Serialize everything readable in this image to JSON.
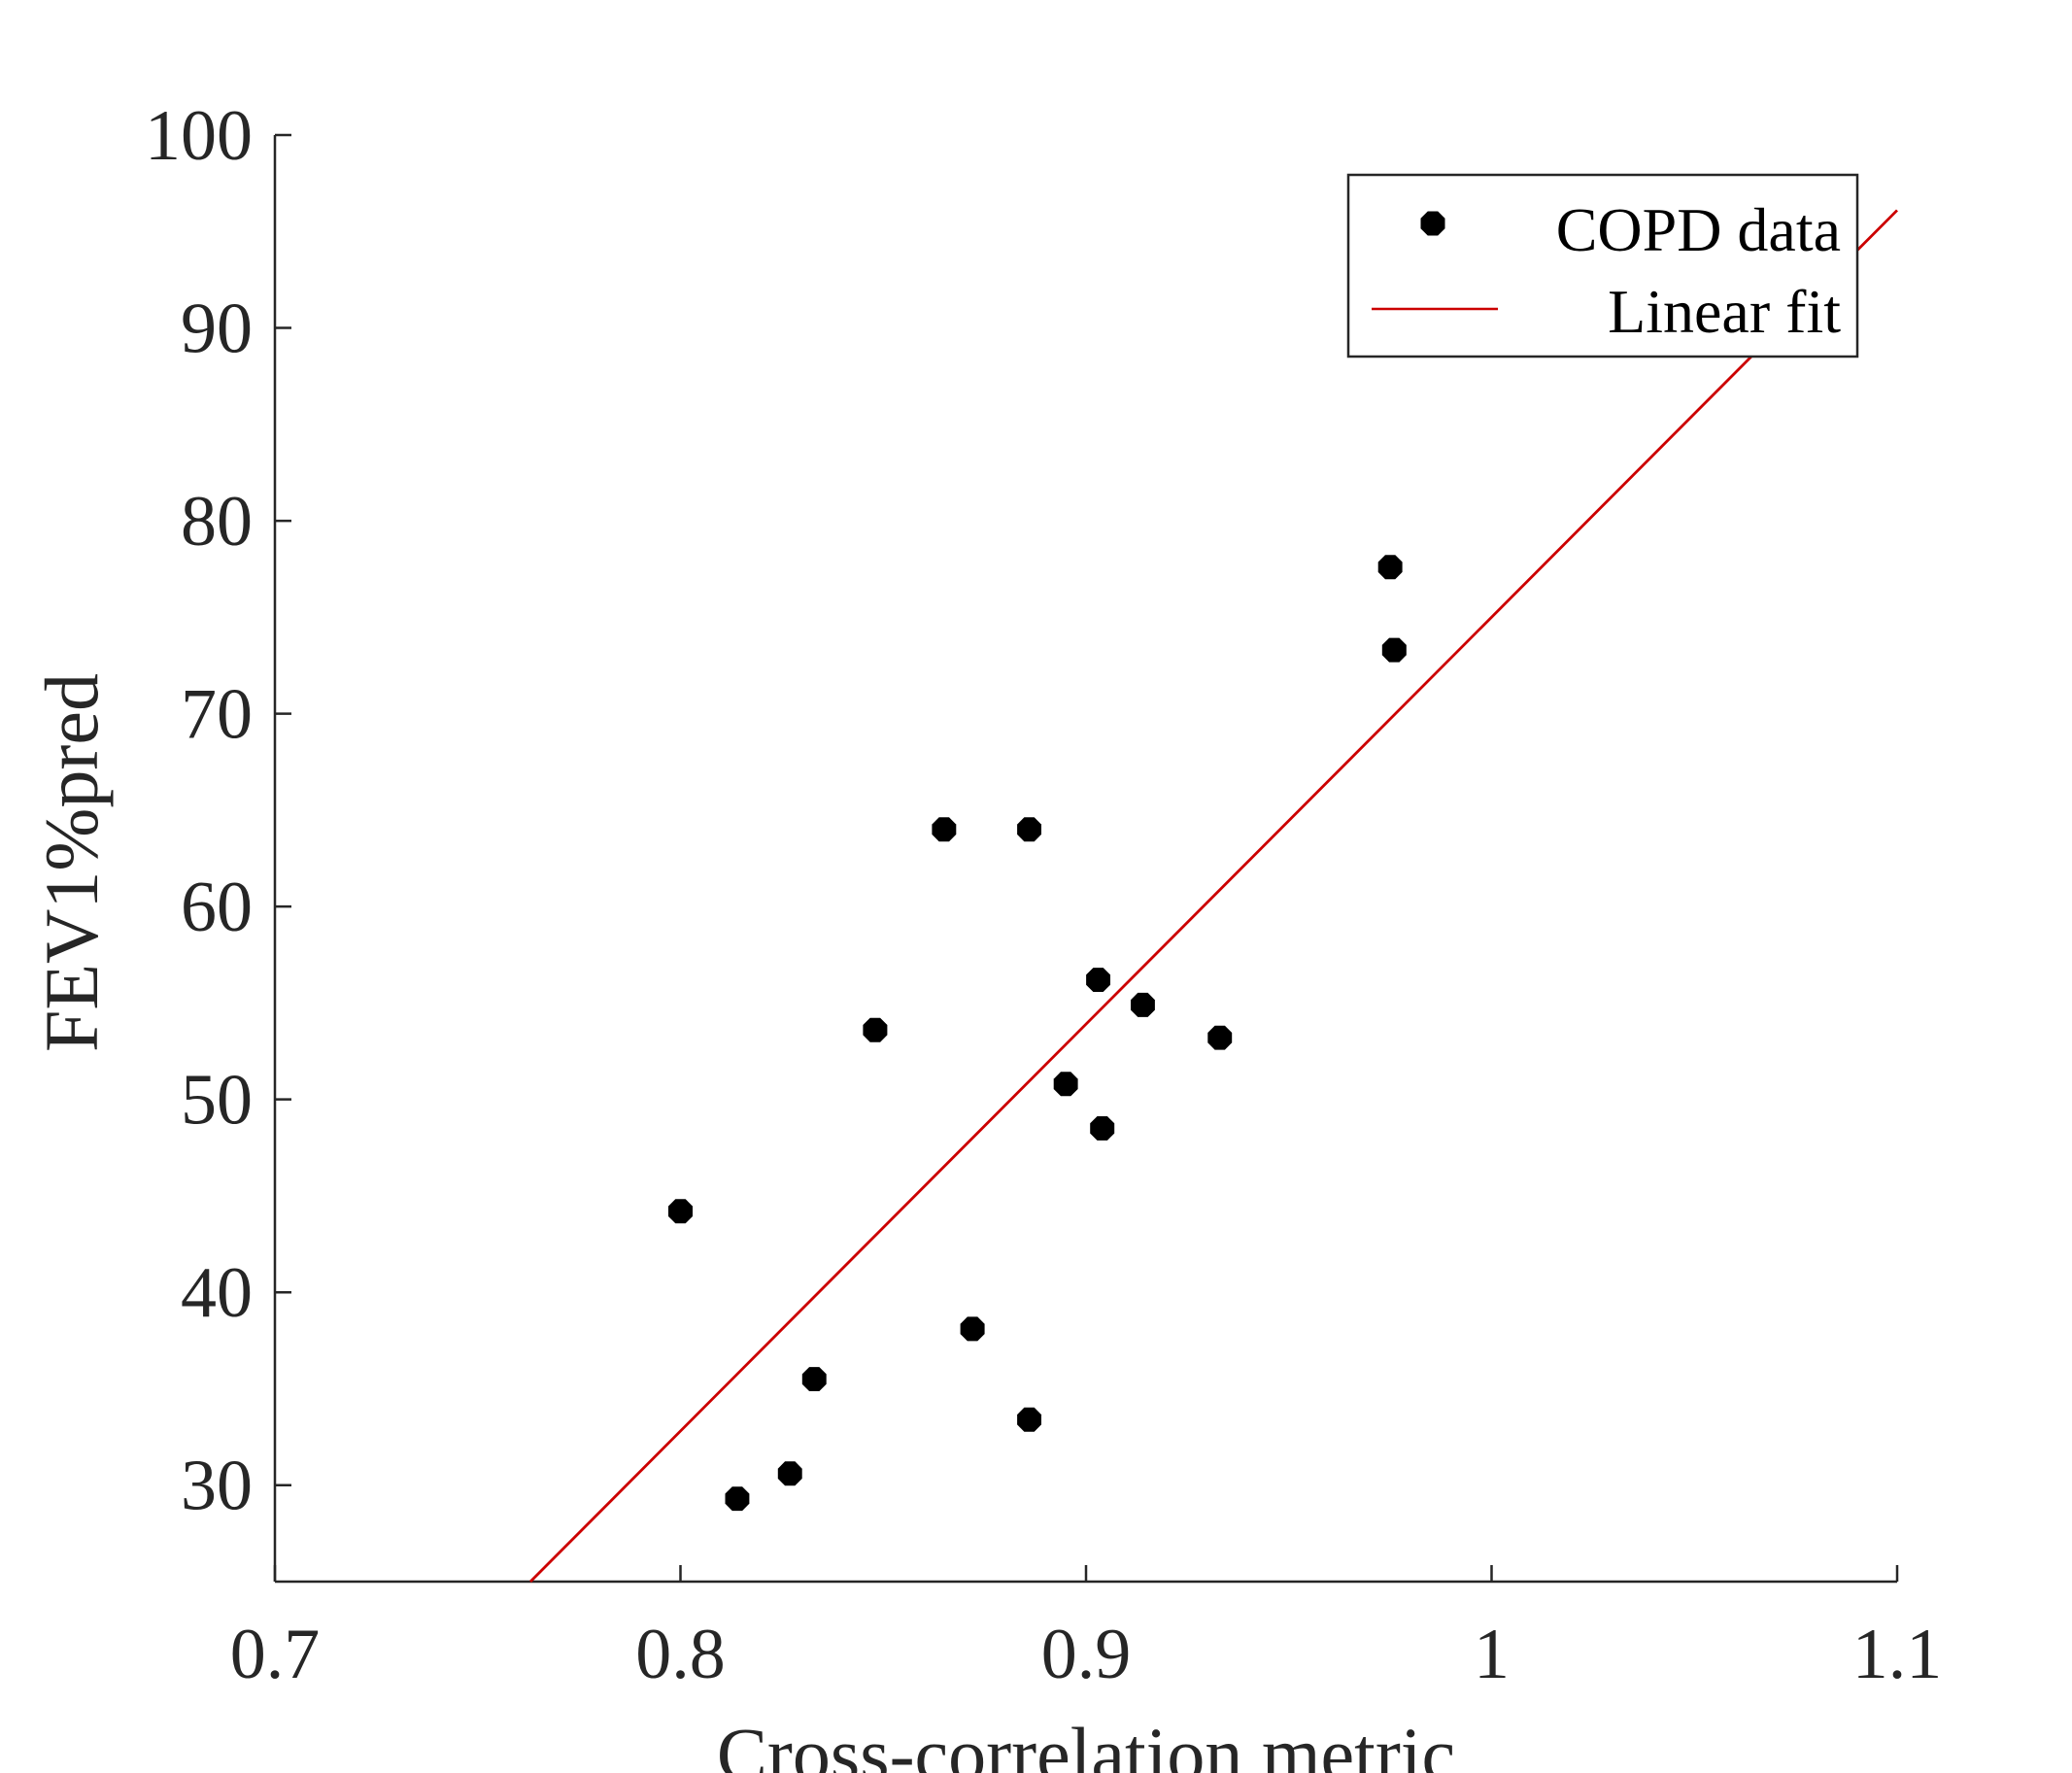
{
  "chart_data": {
    "type": "scatter",
    "title": "",
    "xlabel": "Cross-correlation metric",
    "ylabel": "FEV1%pred",
    "xlim": [
      0.7,
      1.1
    ],
    "ylim": [
      25,
      100
    ],
    "xticks": [
      0.7,
      0.8,
      0.9,
      1.0,
      1.1
    ],
    "xtick_labels": [
      "0.7",
      "0.8",
      "0.9",
      "1",
      "1.1"
    ],
    "yticks": [
      30,
      40,
      50,
      60,
      70,
      80,
      90,
      100
    ],
    "ytick_labels": [
      "30",
      "40",
      "50",
      "60",
      "70",
      "80",
      "90",
      "100"
    ],
    "grid": false,
    "legend_position": "top-right",
    "series": [
      {
        "name": "COPD data",
        "kind": "scatter",
        "color": "#000000",
        "marker": "octagon",
        "x": [
          0.8,
          0.814,
          0.827,
          0.833,
          0.848,
          0.865,
          0.872,
          0.886,
          0.886,
          0.895,
          0.903,
          0.904,
          0.914,
          0.933,
          0.975,
          0.976
        ],
        "y": [
          44.2,
          29.3,
          30.6,
          35.5,
          53.6,
          64.0,
          38.1,
          64.0,
          33.4,
          50.8,
          56.2,
          48.5,
          54.9,
          53.2,
          77.6,
          73.3
        ]
      },
      {
        "name": "Linear fit",
        "kind": "line",
        "color": "#cc0000",
        "x": [
          0.763,
          1.1
        ],
        "y": [
          25.0,
          96.1
        ]
      }
    ]
  }
}
